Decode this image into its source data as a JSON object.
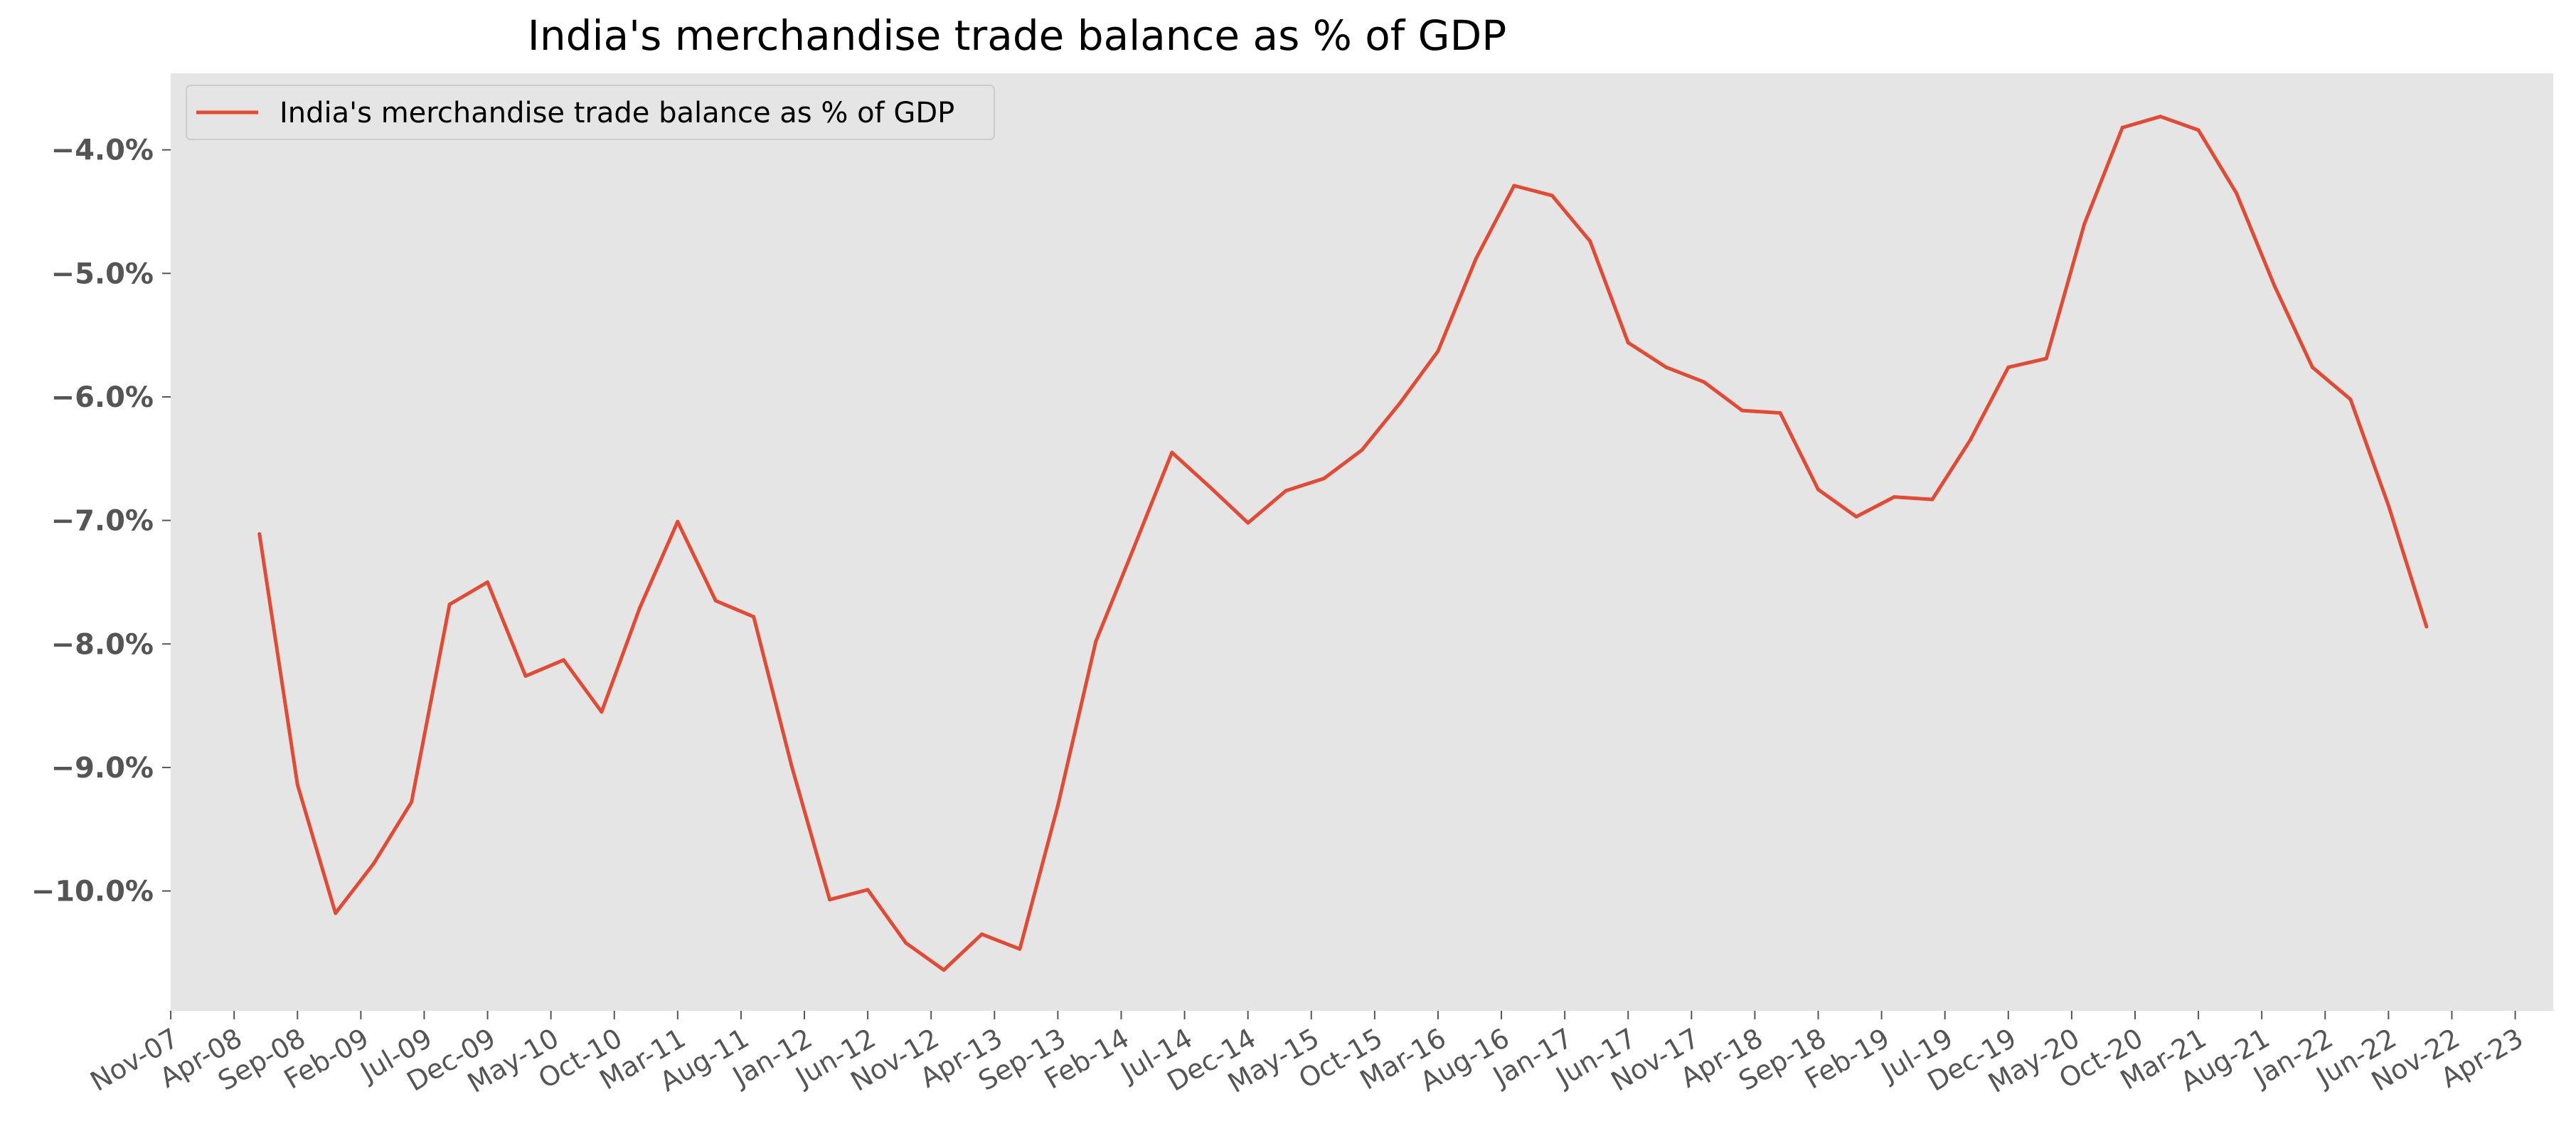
{
  "chart_data": {
    "type": "line",
    "title": "India's merchandise trade balance as % of GDP",
    "xlabel": "",
    "ylabel": "",
    "ylim": [
      -10.97,
      -3.38
    ],
    "grid": false,
    "legend_position": "top-left",
    "y_ticks": [
      {
        "value": -4,
        "label": "−4.0%"
      },
      {
        "value": -5,
        "label": "−5.0%"
      },
      {
        "value": -6,
        "label": "−6.0%"
      },
      {
        "value": -7,
        "label": "−7.0%"
      },
      {
        "value": -8,
        "label": "−8.0%"
      },
      {
        "value": -9,
        "label": "−9.0%"
      },
      {
        "value": -10,
        "label": "−10.0%"
      }
    ],
    "x_ticks": [
      "Nov-07",
      "Apr-08",
      "Sep-08",
      "Feb-09",
      "Jul-09",
      "Dec-09",
      "May-10",
      "Oct-10",
      "Mar-11",
      "Aug-11",
      "Jan-12",
      "Jun-12",
      "Nov-12",
      "Apr-13",
      "Sep-13",
      "Feb-14",
      "Jul-14",
      "Dec-14",
      "May-15",
      "Oct-15",
      "Mar-16",
      "Aug-16",
      "Jan-17",
      "Jun-17",
      "Nov-17",
      "Apr-18",
      "Sep-18",
      "Feb-19",
      "Jul-19",
      "Dec-19",
      "May-20",
      "Oct-20",
      "Mar-21",
      "Aug-21",
      "Jan-22",
      "Jun-22",
      "Nov-22",
      "Apr-23"
    ],
    "series": [
      {
        "name": "India's merchandise trade balance as % of GDP",
        "color": "#E24A33",
        "points": [
          {
            "x": "2008-06",
            "y": -7.11
          },
          {
            "x": "2008-09",
            "y": -9.14
          },
          {
            "x": "2008-12",
            "y": -10.18
          },
          {
            "x": "2009-03",
            "y": -9.78
          },
          {
            "x": "2009-06",
            "y": -9.28
          },
          {
            "x": "2009-09",
            "y": -7.68
          },
          {
            "x": "2009-12",
            "y": -7.5
          },
          {
            "x": "2010-03",
            "y": -8.26
          },
          {
            "x": "2010-06",
            "y": -8.13
          },
          {
            "x": "2010-09",
            "y": -8.55
          },
          {
            "x": "2010-12",
            "y": -7.71
          },
          {
            "x": "2011-03",
            "y": -7.01
          },
          {
            "x": "2011-06",
            "y": -7.65
          },
          {
            "x": "2011-09",
            "y": -7.78
          },
          {
            "x": "2011-12",
            "y": -8.99
          },
          {
            "x": "2012-03",
            "y": -10.07
          },
          {
            "x": "2012-06",
            "y": -9.99
          },
          {
            "x": "2012-09",
            "y": -10.42
          },
          {
            "x": "2012-12",
            "y": -10.64
          },
          {
            "x": "2013-03",
            "y": -10.35
          },
          {
            "x": "2013-06",
            "y": -10.47
          },
          {
            "x": "2013-09",
            "y": -9.31
          },
          {
            "x": "2013-12",
            "y": -7.98
          },
          {
            "x": "2014-03",
            "y": -7.22
          },
          {
            "x": "2014-06",
            "y": -6.45
          },
          {
            "x": "2014-09",
            "y": -6.73
          },
          {
            "x": "2014-12",
            "y": -7.02
          },
          {
            "x": "2015-03",
            "y": -6.76
          },
          {
            "x": "2015-06",
            "y": -6.66
          },
          {
            "x": "2015-09",
            "y": -6.43
          },
          {
            "x": "2015-12",
            "y": -6.05
          },
          {
            "x": "2016-03",
            "y": -5.63
          },
          {
            "x": "2016-06",
            "y": -4.88
          },
          {
            "x": "2016-09",
            "y": -4.29
          },
          {
            "x": "2016-12",
            "y": -4.37
          },
          {
            "x": "2017-03",
            "y": -4.74
          },
          {
            "x": "2017-06",
            "y": -5.56
          },
          {
            "x": "2017-09",
            "y": -5.76
          },
          {
            "x": "2017-12",
            "y": -5.88
          },
          {
            "x": "2018-03",
            "y": -6.11
          },
          {
            "x": "2018-06",
            "y": -6.13
          },
          {
            "x": "2018-09",
            "y": -6.75
          },
          {
            "x": "2018-12",
            "y": -6.97
          },
          {
            "x": "2019-03",
            "y": -6.81
          },
          {
            "x": "2019-06",
            "y": -6.83
          },
          {
            "x": "2019-09",
            "y": -6.35
          },
          {
            "x": "2019-12",
            "y": -5.76
          },
          {
            "x": "2020-03",
            "y": -5.69
          },
          {
            "x": "2020-06",
            "y": -4.6
          },
          {
            "x": "2020-09",
            "y": -3.82
          },
          {
            "x": "2020-12",
            "y": -3.73
          },
          {
            "x": "2021-03",
            "y": -3.84
          },
          {
            "x": "2021-06",
            "y": -4.35
          },
          {
            "x": "2021-09",
            "y": -5.1
          },
          {
            "x": "2021-12",
            "y": -5.76
          },
          {
            "x": "2022-03",
            "y": -6.02
          },
          {
            "x": "2022-06",
            "y": -6.88
          },
          {
            "x": "2022-09",
            "y": -7.86
          }
        ]
      }
    ],
    "colors": {
      "plot_background": "#E5E5E5",
      "line": "#E24A33",
      "tick_text": "#555555",
      "legend_background": "#E5E5E5",
      "legend_border": "#CCCCCC"
    }
  }
}
